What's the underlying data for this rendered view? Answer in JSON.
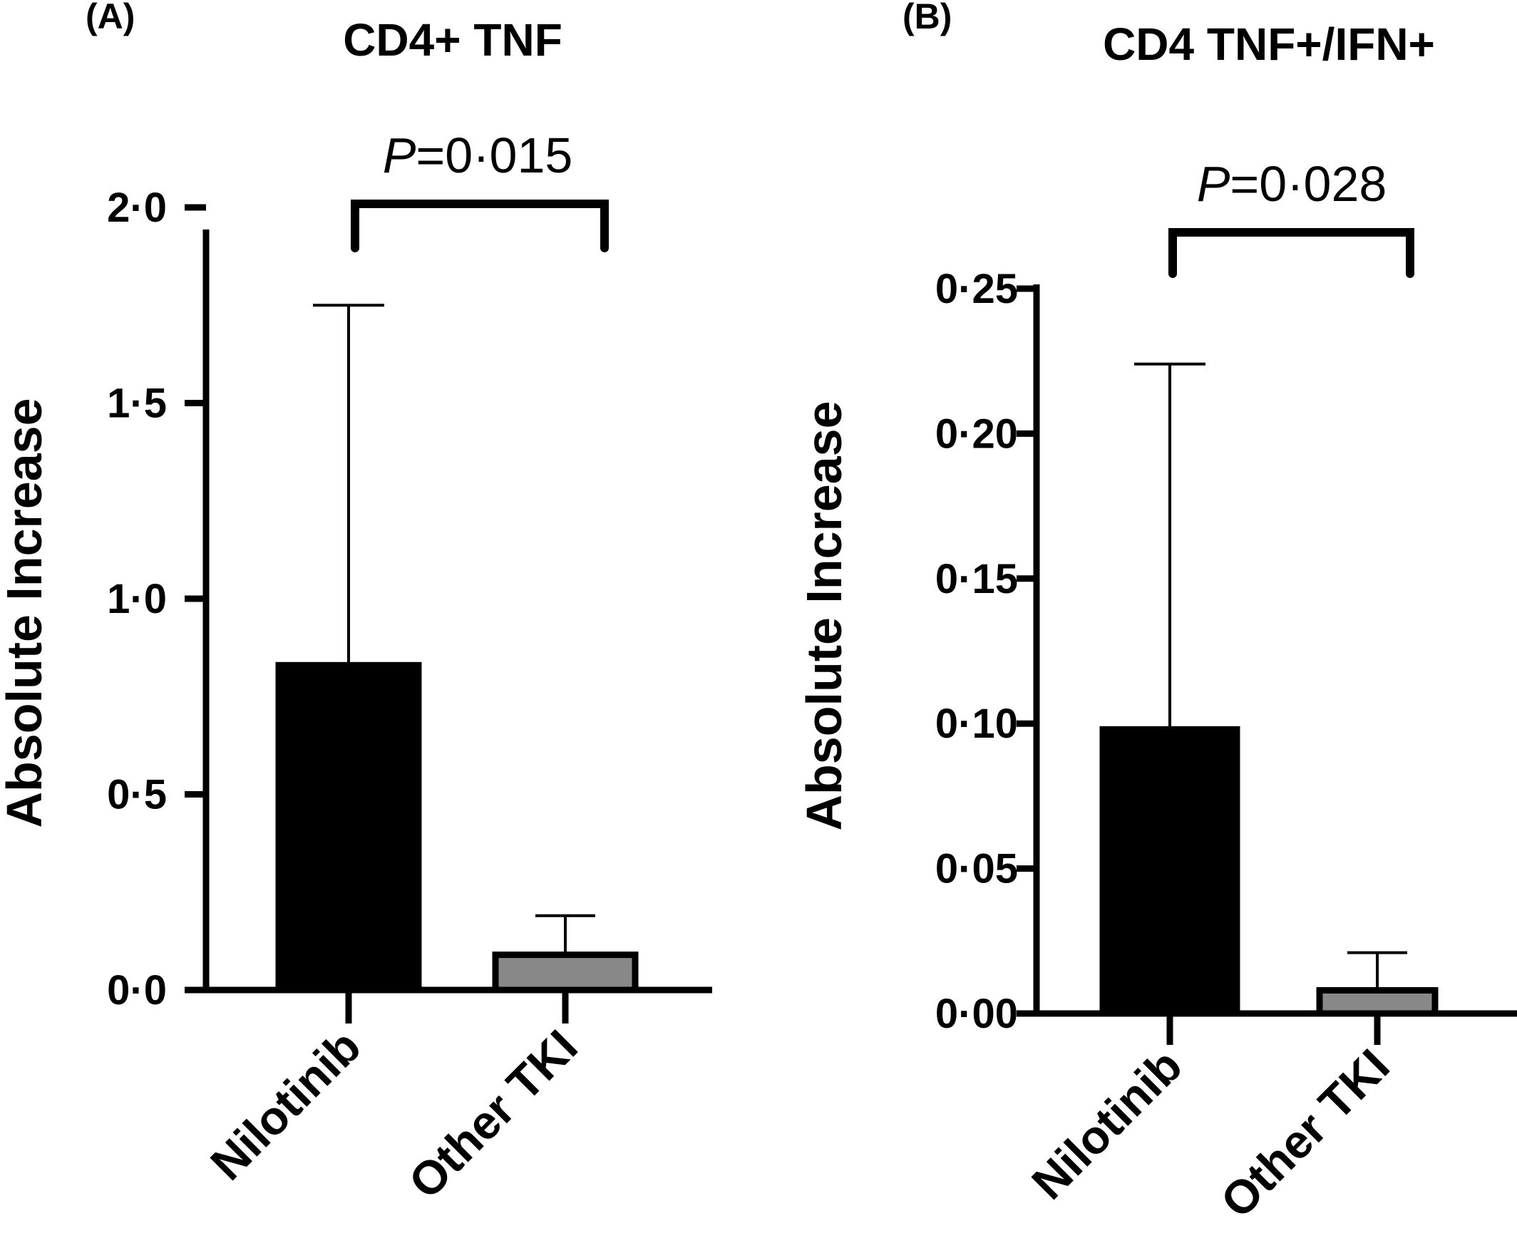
{
  "chart_data": [
    {
      "type": "bar",
      "panel": "(A)",
      "title": "CD4+ TNF",
      "xlabel": "",
      "ylabel": "Absolute Increase",
      "categories": [
        "Nilotinib",
        "Other TKI"
      ],
      "values": [
        0.83,
        0.09
      ],
      "error_upper": [
        1.75,
        0.19
      ],
      "bar_colors": [
        "#000000",
        "#888888"
      ],
      "ylim": [
        0,
        2.0
      ],
      "yticks": [
        0,
        0.5,
        1.0,
        1.5,
        2.0
      ],
      "ytick_labels": [
        "0·0",
        "0·5",
        "1·0",
        "1·5",
        "2·0"
      ],
      "annotation": {
        "p_letter": "P",
        "p_rest": "=0·015"
      },
      "grid": false,
      "legend": "none"
    },
    {
      "type": "bar",
      "panel": "(B)",
      "title": "CD4 TNF+/IFN+",
      "xlabel": "",
      "ylabel": "Absolute Increase",
      "categories": [
        "Nilotinib",
        "Other TKI"
      ],
      "values": [
        0.098,
        0.008
      ],
      "error_upper": [
        0.224,
        0.021
      ],
      "bar_colors": [
        "#000000",
        "#888888"
      ],
      "ylim": [
        0,
        0.25
      ],
      "yticks": [
        0,
        0.05,
        0.1,
        0.15,
        0.2,
        0.25
      ],
      "ytick_labels": [
        "0·00",
        "0·05",
        "0·10",
        "0·15",
        "0·20",
        "0·25"
      ],
      "annotation": {
        "p_letter": "P",
        "p_rest": "=0·028"
      },
      "grid": false,
      "legend": "none"
    }
  ]
}
